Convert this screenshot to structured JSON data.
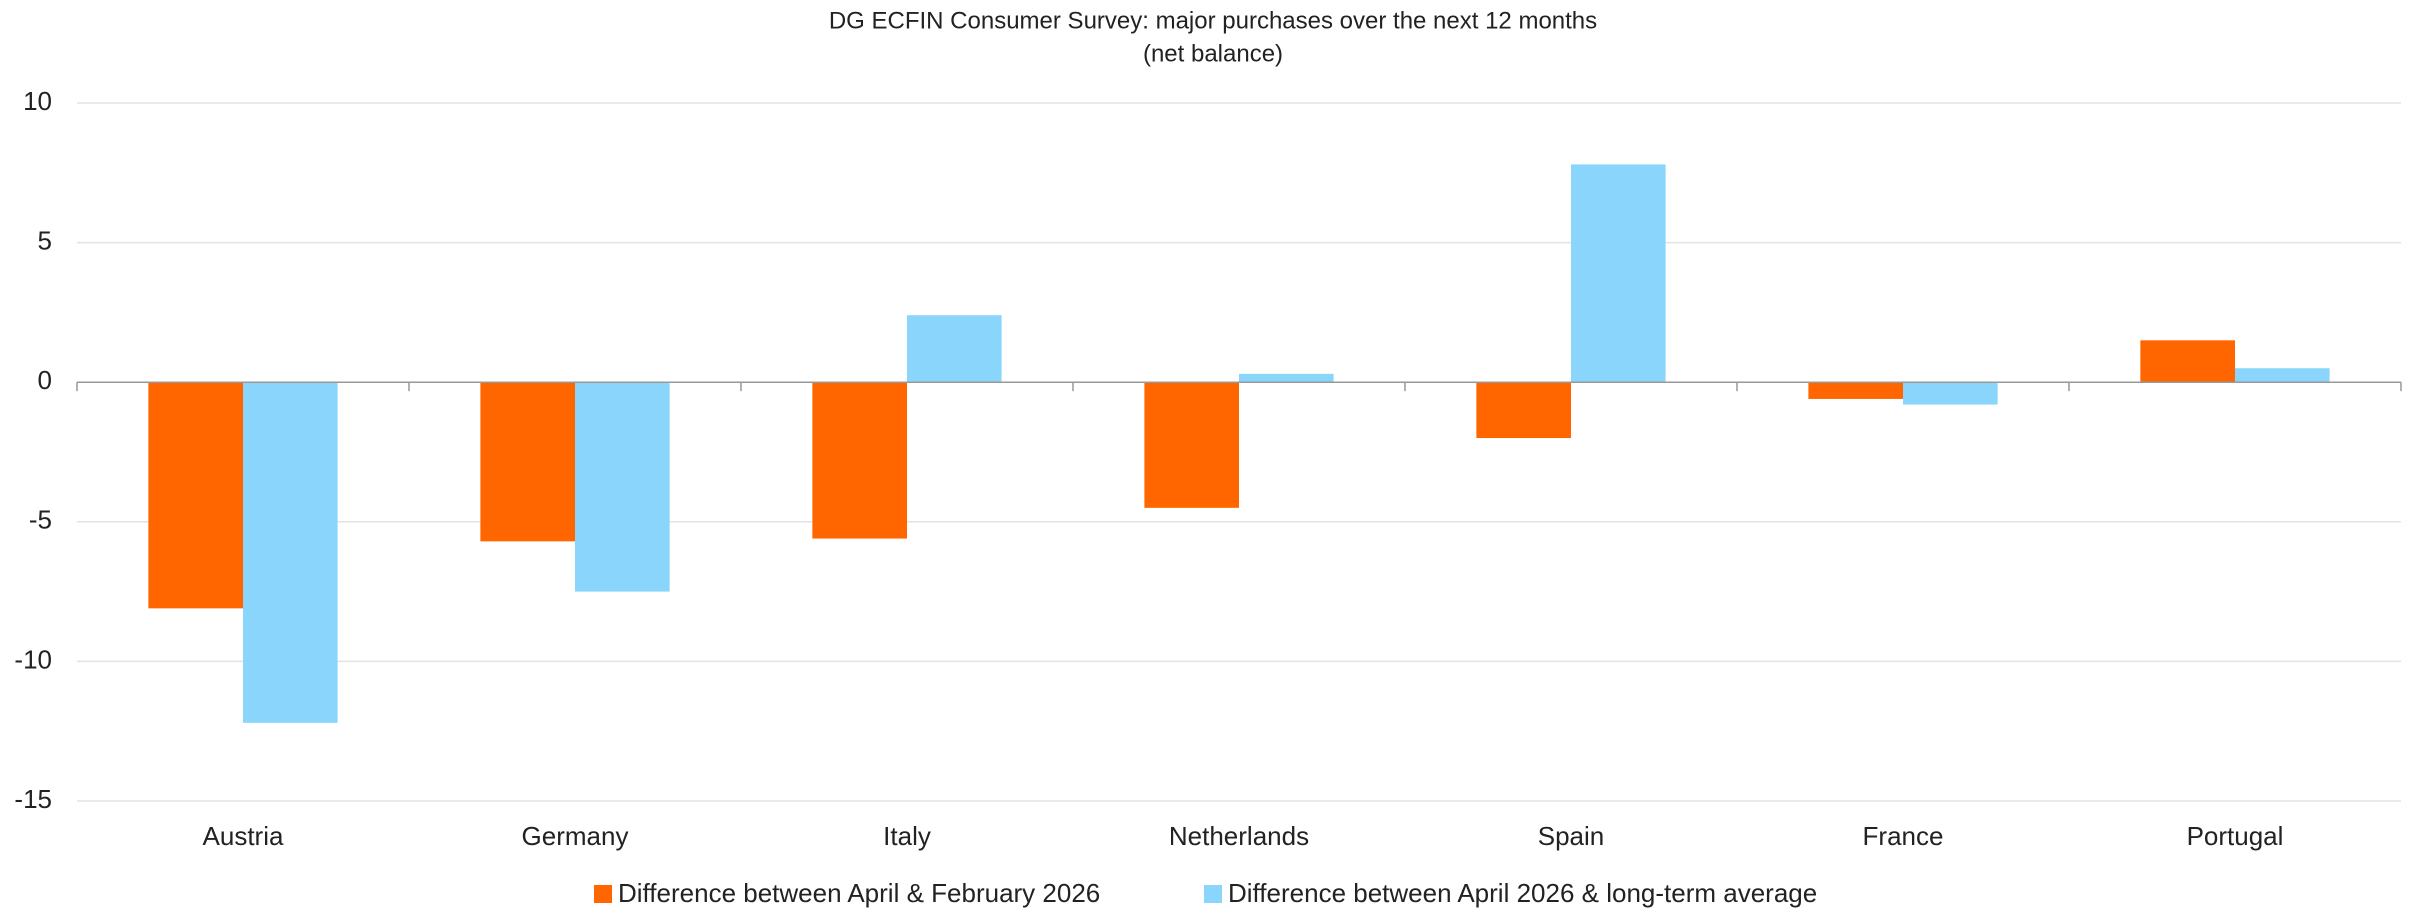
{
  "chart_data": {
    "type": "bar",
    "title": "DG ECFIN Consumer Survey: major purchases over the next 12 months",
    "subtitle": "(net balance)",
    "categories": [
      "Austria",
      "Germany",
      "Italy",
      "Netherlands",
      "Spain",
      "France",
      "Portugal"
    ],
    "series": [
      {
        "name": "Difference between April & February 2026",
        "color": "#ff6600",
        "values": [
          -8.1,
          -5.7,
          -5.6,
          -4.5,
          -2.0,
          -0.6,
          1.5
        ]
      },
      {
        "name": "Difference between April 2026 & long-term average",
        "color": "#8ad5fb",
        "values": [
          -12.2,
          -7.5,
          2.4,
          0.3,
          7.8,
          -0.8,
          0.5
        ]
      }
    ],
    "ylim": [
      -15,
      10
    ],
    "yticks": [
      -15,
      -10,
      -5,
      0,
      5,
      10
    ],
    "grid": true
  }
}
